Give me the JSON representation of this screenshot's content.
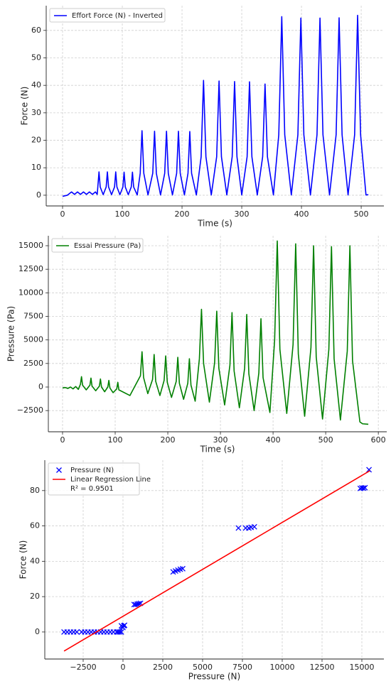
{
  "chart_data": [
    {
      "type": "line",
      "x_label": "Time (s)",
      "y_label": "Force (N)",
      "legend": "upper left",
      "grid": true,
      "xlim": [
        -27.4,
        538
      ],
      "ylim": [
        -3.9,
        69
      ],
      "xticks": [
        0,
        100,
        200,
        300,
        400,
        500
      ],
      "yticks": [
        0,
        10,
        20,
        30,
        40,
        50,
        60
      ],
      "series": [
        {
          "name": "Effort Force (N) - Inverted",
          "color": "#0000ff",
          "kind": "line",
          "x": [
            0,
            8,
            15,
            20,
            25,
            30,
            35,
            40,
            45,
            50,
            55,
            58,
            59,
            61,
            63,
            68,
            73,
            75,
            77,
            82,
            87,
            89,
            91,
            96,
            101,
            103,
            105,
            110,
            115,
            117,
            119,
            125,
            130,
            133,
            136,
            143,
            151,
            154,
            157,
            164,
            171,
            174,
            177,
            184,
            191,
            194,
            197,
            204,
            210,
            213,
            216,
            224,
            232,
            236,
            240,
            249,
            258,
            262,
            266,
            275,
            284,
            288,
            292,
            300,
            309,
            313,
            317,
            326,
            335,
            339,
            343,
            353,
            362,
            367,
            372,
            383,
            394,
            399,
            404,
            415,
            426,
            431,
            436,
            447,
            458,
            463,
            468,
            478,
            489,
            494,
            499,
            508,
            512
          ],
          "values": [
            -0.4,
            0,
            1.2,
            0.3,
            1.2,
            0.3,
            1.2,
            0.3,
            1.2,
            0.3,
            1.2,
            0.3,
            3,
            8.5,
            3,
            0.2,
            3,
            8.5,
            3,
            0.2,
            3,
            8.5,
            3,
            0.2,
            3,
            8.4,
            3,
            0.2,
            3,
            8.4,
            3,
            0.1,
            8,
            23.5,
            8,
            0.1,
            8,
            23.3,
            8,
            0.1,
            8,
            23.3,
            8,
            0.1,
            8,
            23.3,
            8,
            0.1,
            8,
            23.2,
            8,
            0.1,
            14,
            41.8,
            14,
            0.1,
            14,
            41.6,
            14,
            0.1,
            14,
            41.4,
            14,
            0.1,
            14,
            41.3,
            14,
            0.1,
            14,
            40.5,
            14,
            0.1,
            22,
            65,
            22,
            0.1,
            22,
            64.5,
            22,
            0.1,
            22,
            64.5,
            22,
            0.1,
            22,
            64.6,
            22,
            0.1,
            22,
            65.5,
            22,
            0.1,
            0.2
          ]
        }
      ]
    },
    {
      "type": "line",
      "x_label": "Time (s)",
      "y_label": "Pressure (Pa)",
      "legend": "upper left",
      "grid": true,
      "xlim": [
        -27,
        616
      ],
      "ylim": [
        -4749,
        16055
      ],
      "xticks": [
        0,
        100,
        200,
        300,
        400,
        500,
        600
      ],
      "yticks": [
        {
          "value": -2500,
          "label": "−2500"
        },
        0,
        2500,
        5000,
        7500,
        10000,
        12500,
        15000
      ],
      "series": [
        {
          "name": "Essai Pressure (Pa)",
          "color": "#008000",
          "kind": "line",
          "x": [
            0,
            5,
            10,
            15,
            20,
            25,
            30,
            34,
            36,
            38,
            45,
            52,
            54,
            56,
            63,
            70,
            72,
            74,
            80,
            86,
            88,
            90,
            96,
            103,
            105,
            107,
            128,
            148,
            151,
            154,
            162,
            171,
            174,
            177,
            185,
            193,
            196,
            199,
            207,
            216,
            219,
            222,
            230,
            238,
            241,
            244,
            252,
            260,
            264,
            268,
            279,
            289,
            293,
            297,
            308,
            318,
            322,
            326,
            336,
            346,
            350,
            354,
            364,
            373,
            377,
            381,
            394,
            403,
            408,
            413,
            426,
            438,
            443,
            448,
            460,
            472,
            477,
            482,
            494,
            506,
            511,
            516,
            528,
            541,
            546,
            551,
            565,
            570,
            581
          ],
          "values": [
            -100,
            -50,
            -150,
            0,
            -200,
            50,
            -250,
            300,
            1100,
            200,
            -300,
            200,
            950,
            100,
            -400,
            100,
            850,
            0,
            -500,
            0,
            700,
            -100,
            -600,
            -200,
            500,
            -300,
            -900,
            1200,
            3750,
            1000,
            -700,
            800,
            3450,
            600,
            -900,
            700,
            3300,
            500,
            -1100,
            600,
            3150,
            400,
            -1300,
            400,
            3000,
            200,
            -1500,
            3000,
            8250,
            2500,
            -1600,
            2600,
            8050,
            2000,
            -1900,
            2300,
            7900,
            1700,
            -2200,
            2000,
            7700,
            1400,
            -2500,
            1500,
            7250,
            1000,
            -2700,
            5000,
            15500,
            4000,
            -2800,
            4500,
            15200,
            3500,
            -3100,
            4200,
            15000,
            3200,
            -3400,
            4000,
            14900,
            3000,
            -3500,
            3800,
            15000,
            2800,
            -3700,
            -3900,
            -3950
          ]
        }
      ]
    },
    {
      "type": "scatter",
      "x_label": "Pressure (N)",
      "y_label": "Force (N)",
      "legend": "upper left",
      "grid": true,
      "xlim": [
        -4910,
        16384
      ],
      "ylim": [
        -15.3,
        97.2
      ],
      "xticks": [
        {
          "value": -2500,
          "label": "−2500"
        },
        0,
        2500,
        5000,
        7500,
        10000,
        12500,
        15000
      ],
      "yticks": [
        0,
        20,
        40,
        60,
        80
      ],
      "series": [
        {
          "name": "Pressure (N)",
          "color": "#0000ff",
          "kind": "scatter",
          "x": [
            -3700,
            -3500,
            -3300,
            -3100,
            -2900,
            -2600,
            -2400,
            -2200,
            -2000,
            -1800,
            -1600,
            -1400,
            -1200,
            -1000,
            -800,
            -600,
            -400,
            -300,
            -200,
            -100,
            -100,
            -50,
            0,
            50,
            100,
            700,
            800,
            900,
            1000,
            1100,
            3150,
            3300,
            3450,
            3600,
            3750,
            7250,
            7700,
            7900,
            8050,
            8250,
            14900,
            15000,
            15100,
            15200,
            15450
          ],
          "values": [
            0,
            0,
            0,
            0,
            0,
            0,
            0,
            0,
            0,
            0,
            0,
            0,
            0,
            0,
            0,
            0,
            0,
            0,
            0,
            0,
            3.5,
            3,
            2.5,
            3.5,
            3.8,
            15.5,
            15.5,
            15.8,
            16,
            16.2,
            34,
            34.5,
            35,
            35.5,
            35.8,
            58.8,
            58.8,
            58.8,
            59.2,
            59.5,
            81.2,
            81.5,
            81.4,
            81.6,
            91.8
          ]
        },
        {
          "name": "Linear Regression Line",
          "color": "#ff0000",
          "kind": "line",
          "x": [
            -3700,
            15500
          ],
          "values": [
            -10.8,
            91.2
          ]
        }
      ],
      "legend_note": "R² = 0.9501"
    }
  ]
}
